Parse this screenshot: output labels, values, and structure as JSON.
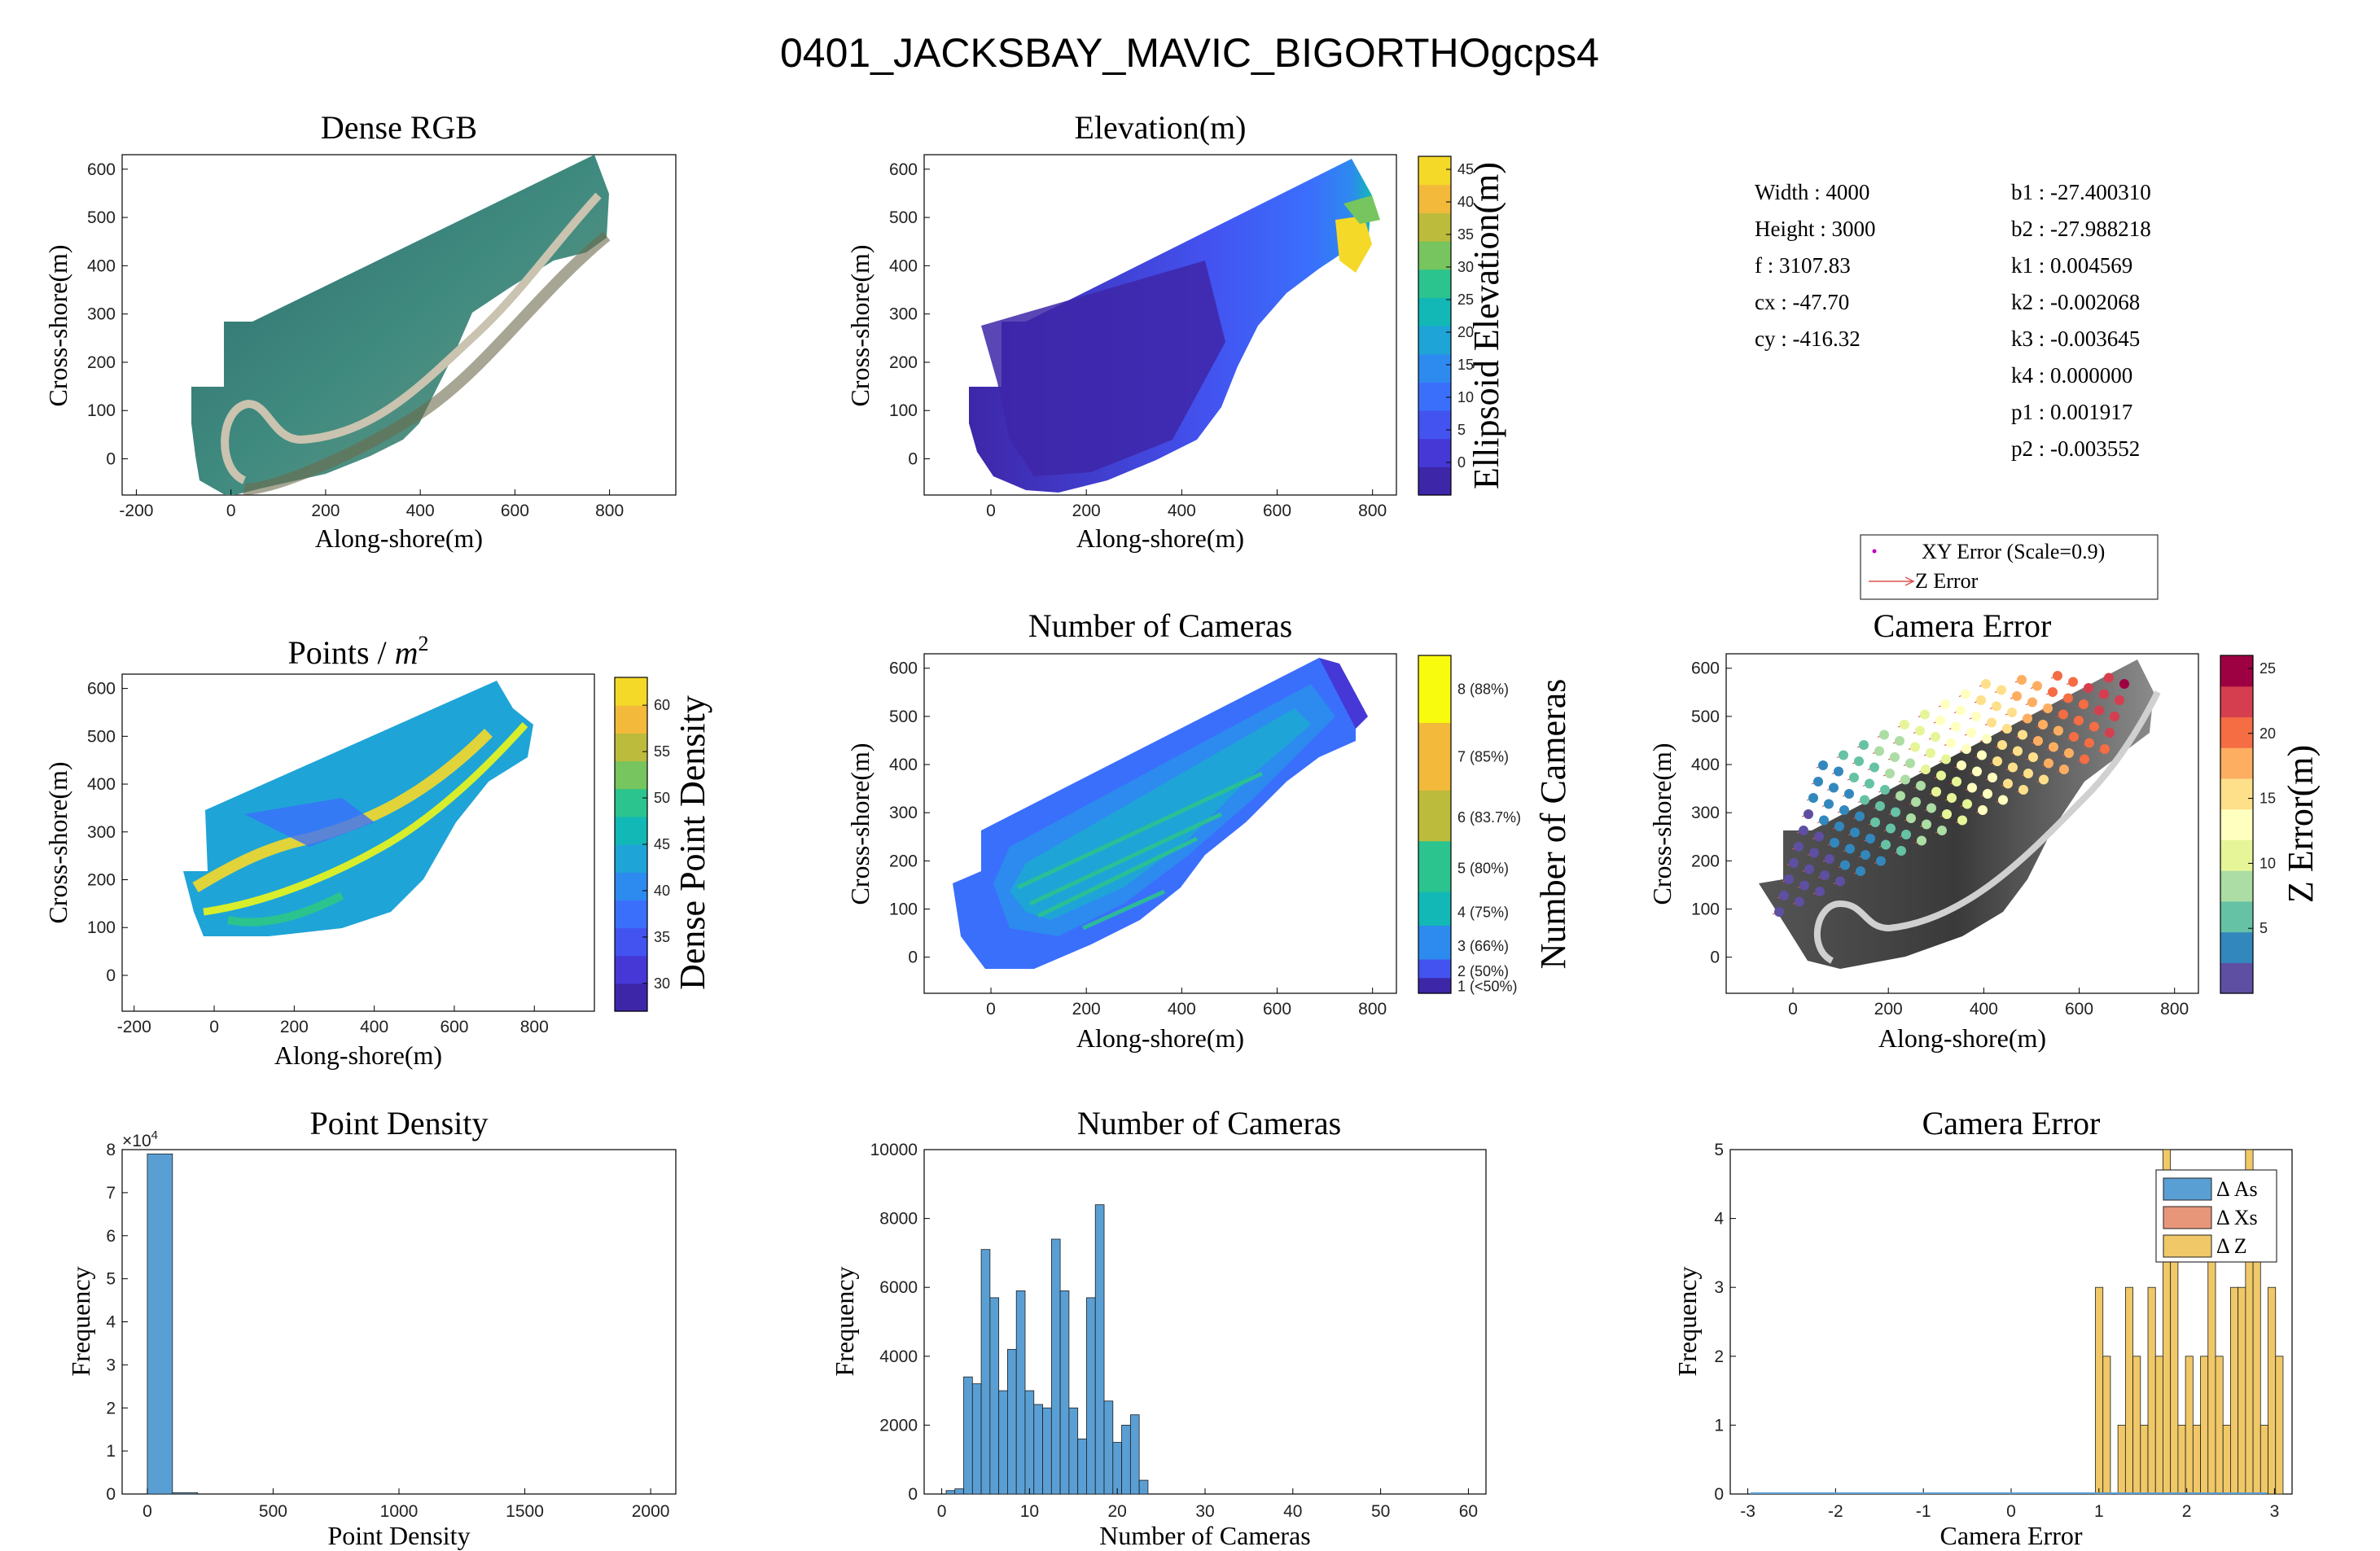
{
  "figure_title": "0401_JACKSBAY_MAVIC_BIGORTHOgcps4",
  "colors": {
    "bar_blue": "#5a9fd4",
    "bar_orange": "#e8967a",
    "bar_yellow": "#f0c868",
    "parula": [
      "#3e26a8",
      "#4538d6",
      "#4353f0",
      "#3a6ffc",
      "#2d8aef",
      "#1fa4d7",
      "#12b8b6",
      "#2bc48e",
      "#76c55e",
      "#bdbb3c",
      "#f2b93a",
      "#f5d929",
      "#f9fb0e"
    ],
    "spectral": [
      "#5e4fa2",
      "#3288bd",
      "#66c2a5",
      "#abdda4",
      "#e6f598",
      "#ffffbf",
      "#fee08b",
      "#fdae61",
      "#f46d43",
      "#d53e4f",
      "#9e0142"
    ]
  },
  "axes": {
    "along_label": "Along-shore(m)",
    "cross_label": "Cross-shore(m)",
    "freq_label": "Frequency"
  },
  "panels": {
    "dense_rgb": {
      "title": "Dense RGB"
    },
    "elevation": {
      "title": "Elevation(m)",
      "cbar_label": "Ellipsoid Elevation(m)",
      "cbar_ticks": [
        "45",
        "40",
        "35",
        "30",
        "25",
        "20",
        "15",
        "10",
        "5",
        "0"
      ]
    },
    "points": {
      "title": "Points / ",
      "title_var": "m",
      "title_exp": "2",
      "cbar_label": "Dense Point Density",
      "cbar_ticks": [
        "60",
        "55",
        "50",
        "45",
        "40",
        "35",
        "30"
      ]
    },
    "num_cameras_map": {
      "title": "Number of Cameras",
      "cbar_label": "Number of Cameras",
      "cbar_ticks": [
        "8 (88%)",
        "7 (85%)",
        "6 (83.7%)",
        "5 (80%)",
        "4 (75%)",
        "3 (66%)",
        "2 (50%)",
        "1 (<50%)"
      ]
    },
    "camera_error_map": {
      "title": "Camera Error",
      "cbar_label": "Z Error(m)",
      "cbar_ticks": [
        "25",
        "20",
        "15",
        "10",
        "5"
      ],
      "legend": [
        "XY Error (Scale=0.9)",
        "Z Error"
      ]
    },
    "point_density_hist": {
      "title": "Point Density",
      "xlabel": "Point Density",
      "exponent": "×10",
      "exponent_power": "4"
    },
    "num_cameras_hist": {
      "title": "Number of Cameras",
      "xlabel": "Number of Cameras"
    },
    "camera_error_hist": {
      "title": "Camera Error",
      "xlabel": "Camera Error",
      "legend": [
        "Δ As",
        "Δ Xs",
        "Δ Z"
      ]
    }
  },
  "camera_params": {
    "left": [
      {
        "k": "Width",
        "v": "4000"
      },
      {
        "k": "Height",
        "v": "3000"
      },
      {
        "k": "f",
        "v": "3107.83"
      },
      {
        "k": "cx",
        "v": "-47.70"
      },
      {
        "k": "cy",
        "v": "-416.32"
      }
    ],
    "right": [
      {
        "k": "b1",
        "v": "-27.400310"
      },
      {
        "k": "b2",
        "v": "-27.988218"
      },
      {
        "k": "k1",
        "v": "0.004569"
      },
      {
        "k": "k2",
        "v": "-0.002068"
      },
      {
        "k": "k3",
        "v": "-0.003645"
      },
      {
        "k": "k4",
        "v": "0.000000"
      },
      {
        "k": "p1",
        "v": "0.001917"
      },
      {
        "k": "p2",
        "v": "-0.003552"
      }
    ]
  },
  "chart_data": [
    {
      "id": "point_density_hist",
      "type": "bar",
      "title": "Point Density",
      "xlabel": "Point Density",
      "ylabel": "Frequency",
      "xlim": [
        -100,
        2100
      ],
      "ylim": [
        0,
        80000
      ],
      "xticks": [
        0,
        500,
        1000,
        1500,
        2000
      ],
      "yticks": [
        0,
        10000,
        20000,
        30000,
        40000,
        50000,
        60000,
        70000,
        80000
      ],
      "ytick_labels": [
        "0",
        "1",
        "2",
        "3",
        "4",
        "5",
        "6",
        "7",
        "8"
      ],
      "bin_edges": [
        0,
        100,
        200
      ],
      "values": [
        79000,
        300
      ]
    },
    {
      "id": "num_cameras_hist",
      "type": "bar",
      "title": "Number of Cameras",
      "xlabel": "Number of Cameras",
      "ylabel": "Frequency",
      "xlim": [
        -2,
        62
      ],
      "ylim": [
        0,
        10000
      ],
      "xticks": [
        0,
        10,
        20,
        30,
        40,
        50,
        60
      ],
      "yticks": [
        0,
        2000,
        4000,
        6000,
        8000,
        10000
      ],
      "bin_start": 0.5,
      "bin_width": 1,
      "values": [
        100,
        150,
        3400,
        3200,
        7100,
        5700,
        3000,
        4200,
        5900,
        3000,
        2600,
        2500,
        7400,
        5900,
        2500,
        1600,
        5700,
        8400,
        2700,
        1500,
        2000,
        2300,
        400
      ]
    },
    {
      "id": "camera_error_hist",
      "type": "bar",
      "title": "Camera Error",
      "xlabel": "Camera Error",
      "ylabel": "Frequency",
      "xlim": [
        -3.2,
        3.2
      ],
      "ylim": [
        0,
        5
      ],
      "xticks": [
        -3,
        -2,
        -1,
        0,
        1,
        2,
        3
      ],
      "yticks": [
        0,
        1,
        2,
        3,
        4,
        5
      ],
      "series": [
        {
          "name": "Δ As",
          "values": []
        },
        {
          "name": "Δ Xs",
          "values": []
        },
        {
          "name": "Δ Z",
          "bin_start": 0.96,
          "bin_width": 0.0855,
          "values": [
            3,
            2,
            0,
            1,
            3,
            2,
            1,
            3,
            2,
            5,
            4,
            1,
            2,
            1,
            2,
            4,
            2,
            1,
            3,
            3,
            5,
            4,
            1,
            3,
            2
          ]
        }
      ]
    },
    {
      "id": "map_axes",
      "type": "table",
      "note": "Axis ranges of the six map panels (data units, metres)",
      "dense_rgb": {
        "xlim": [
          -230,
          940
        ],
        "ylim": [
          -75,
          630
        ],
        "xticks": [
          -200,
          0,
          200,
          400,
          600,
          800
        ],
        "yticks": [
          0,
          100,
          200,
          300,
          400,
          500,
          600
        ]
      },
      "elevation": {
        "xlim": [
          -140,
          850
        ],
        "ylim": [
          -75,
          630
        ],
        "xticks": [
          0,
          200,
          400,
          600,
          800
        ],
        "yticks": [
          0,
          100,
          200,
          300,
          400,
          500,
          600
        ],
        "clim": [
          -5,
          47
        ]
      },
      "points": {
        "xlim": [
          -230,
          950
        ],
        "ylim": [
          -75,
          630
        ],
        "xticks": [
          -200,
          0,
          200,
          400,
          600,
          800
        ],
        "yticks": [
          0,
          100,
          200,
          300,
          400,
          500,
          600
        ],
        "clim": [
          27,
          63
        ]
      },
      "num_cameras_map": {
        "xlim": [
          -140,
          850
        ],
        "ylim": [
          -75,
          630
        ],
        "xticks": [
          0,
          200,
          400,
          600,
          800
        ],
        "yticks": [
          0,
          100,
          200,
          300,
          400,
          500,
          600
        ]
      },
      "camera_error_map": {
        "xlim": [
          -140,
          850
        ],
        "ylim": [
          -75,
          630
        ],
        "xticks": [
          0,
          200,
          400,
          600,
          800
        ],
        "yticks": [
          0,
          100,
          200,
          300,
          400,
          500,
          600
        ],
        "clim": [
          0,
          26
        ]
      }
    }
  ]
}
